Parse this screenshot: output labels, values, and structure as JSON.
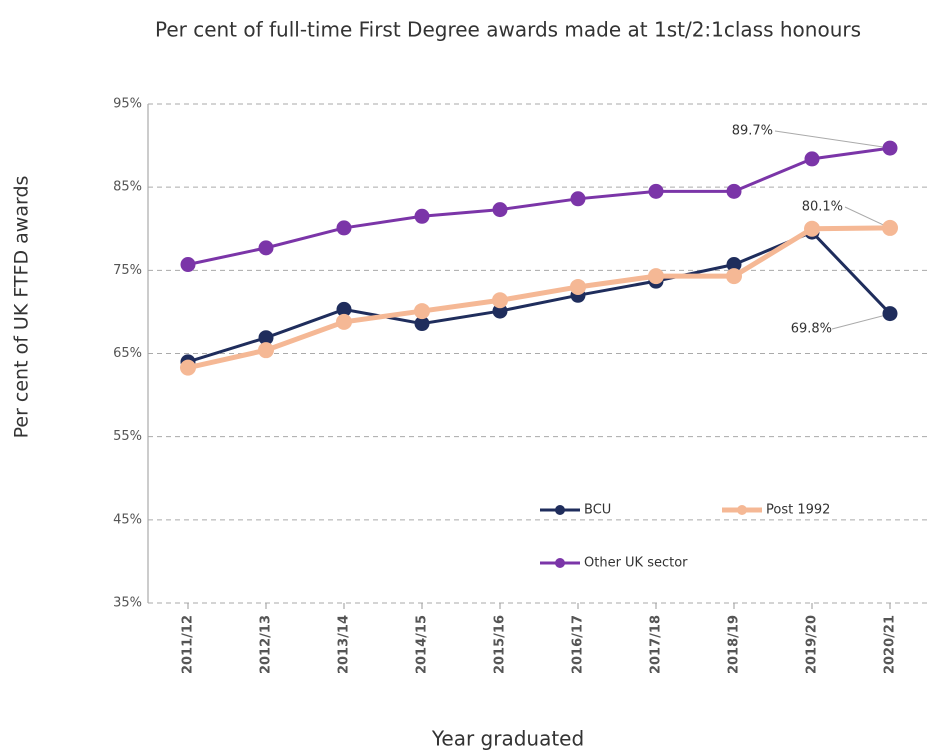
{
  "chart_data": {
    "type": "line",
    "title": "Per cent of full-time First Degree awards made at 1st/2:1class honours",
    "y_label": "Per cent of UK FTFD awards",
    "x_label": "Year graduated",
    "categories": [
      "2011/12",
      "2012/13",
      "2013/14",
      "2014/15",
      "2015/16",
      "2016/17",
      "2017/18",
      "2018/19",
      "2019/20",
      "2020/21"
    ],
    "series": [
      {
        "name": "BCU",
        "color": "#1f2d5c",
        "values": [
          64.0,
          66.9,
          70.3,
          68.6,
          70.1,
          72.0,
          73.7,
          75.7,
          79.6,
          69.8
        ],
        "value_labels": [
          null,
          null,
          null,
          null,
          null,
          null,
          null,
          null,
          null,
          "69.8%"
        ]
      },
      {
        "name": "Post 1992",
        "color": "#f5b895",
        "values": [
          63.3,
          65.4,
          68.8,
          70.1,
          71.4,
          73.0,
          74.3,
          74.3,
          80.0,
          80.1
        ],
        "value_labels": [
          null,
          null,
          null,
          null,
          null,
          null,
          null,
          null,
          null,
          "80.1%"
        ]
      },
      {
        "name": "Other UK sector",
        "color": "#7b35a8",
        "values": [
          75.7,
          77.7,
          80.1,
          81.5,
          82.3,
          83.6,
          84.5,
          84.5,
          88.4,
          89.7
        ],
        "value_labels": [
          null,
          null,
          null,
          null,
          null,
          null,
          null,
          null,
          null,
          "89.7%"
        ]
      }
    ],
    "ylim": [
      35,
      95
    ],
    "yticks": [
      {
        "value": 35,
        "label": "35%"
      },
      {
        "value": 45,
        "label": "45%"
      },
      {
        "value": 55,
        "label": "55%"
      },
      {
        "value": 65,
        "label": "65%"
      },
      {
        "value": 75,
        "label": "75%"
      },
      {
        "value": 85,
        "label": "85%"
      },
      {
        "value": 95,
        "label": "95%"
      }
    ],
    "grid": true
  }
}
